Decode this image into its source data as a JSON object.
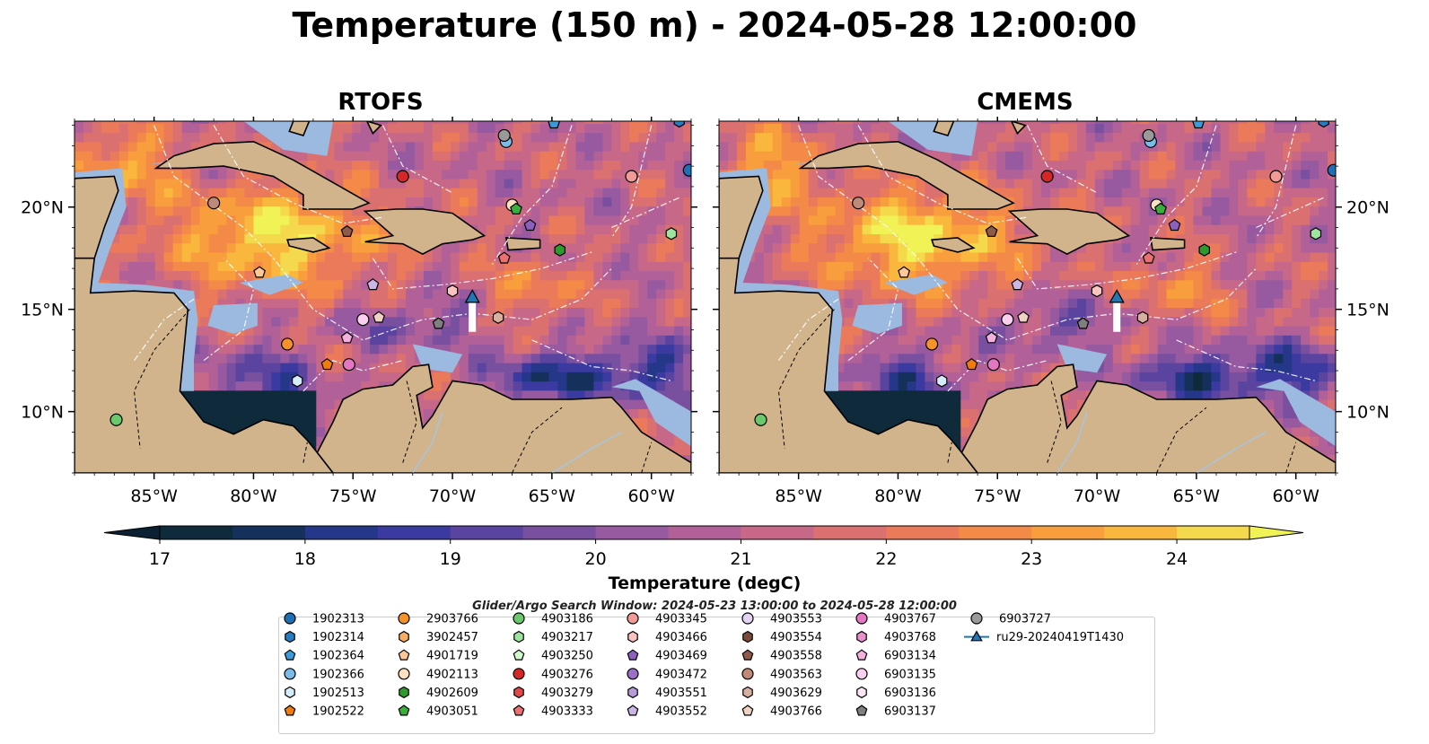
{
  "title": "Temperature (150 m) - 2024-05-28 12:00:00",
  "panels": [
    {
      "title": "RTOFS",
      "source_label": "RTOFS"
    },
    {
      "title": "CMEMS",
      "source_label": "CMEMS"
    }
  ],
  "search_window": "Glider/Argo Search Window: 2024-05-23 13:00:00 to 2024-05-28 12:00:00",
  "colors": {
    "land": "#d2b48c",
    "shelf": "#9cb9e0",
    "water_warm": "#f2e84e",
    "water_cold": "#0b2236",
    "glider": "#1f77b4"
  },
  "chart_data": {
    "type": "heatmap",
    "variable": "Temperature",
    "depth": "150 m",
    "time": "2024-05-28 12:00:00",
    "colorbar": {
      "label": "Temperature (degC)",
      "ticks": [
        17,
        18,
        19,
        20,
        21,
        22,
        23,
        24
      ],
      "range": [
        17,
        24.5
      ],
      "extend": "both",
      "levels": [
        {
          "value": 17.0,
          "color": "#0e2a3b"
        },
        {
          "value": 17.5,
          "color": "#15305a"
        },
        {
          "value": 18.0,
          "color": "#253788"
        },
        {
          "value": 18.5,
          "color": "#3a3aa0"
        },
        {
          "value": 19.0,
          "color": "#5a44a0"
        },
        {
          "value": 19.5,
          "color": "#7950a0"
        },
        {
          "value": 20.0,
          "color": "#975aa0"
        },
        {
          "value": 20.5,
          "color": "#b16198"
        },
        {
          "value": 21.0,
          "color": "#c86888"
        },
        {
          "value": 21.5,
          "color": "#db7070"
        },
        {
          "value": 22.0,
          "color": "#eb7a5a"
        },
        {
          "value": 22.5,
          "color": "#f48a48"
        },
        {
          "value": 23.0,
          "color": "#f89e3c"
        },
        {
          "value": 23.5,
          "color": "#f9b83d"
        },
        {
          "value": 24.0,
          "color": "#f4d94c"
        }
      ]
    },
    "x_axis": {
      "ticks": [
        "85°W",
        "80°W",
        "75°W",
        "70°W",
        "65°W",
        "60°W"
      ],
      "range": [
        -89,
        -58
      ]
    },
    "y_axis": {
      "ticks": [
        "20°N",
        "15°N",
        "10°N"
      ],
      "range": [
        7,
        24.2
      ]
    },
    "legend": {
      "placement": "bottom",
      "entries": [
        {
          "label": "1902313",
          "color": "#1f6fb4",
          "marker": "circle"
        },
        {
          "label": "1902314",
          "color": "#2a7cc0",
          "marker": "hexagon"
        },
        {
          "label": "1902364",
          "color": "#3c9ad8",
          "marker": "pentagon"
        },
        {
          "label": "1902366",
          "color": "#7bbbe8",
          "marker": "circle"
        },
        {
          "label": "1902513",
          "color": "#d6ecfa",
          "marker": "hexagon"
        },
        {
          "label": "1902522",
          "color": "#f07c10",
          "marker": "pentagon"
        },
        {
          "label": "2903766",
          "color": "#f5922a",
          "marker": "circle"
        },
        {
          "label": "3902457",
          "color": "#f8ad60",
          "marker": "hexagon"
        },
        {
          "label": "4901719",
          "color": "#fcc994",
          "marker": "pentagon"
        },
        {
          "label": "4902113",
          "color": "#fde0c0",
          "marker": "circle"
        },
        {
          "label": "4902609",
          "color": "#2e9a2e",
          "marker": "hexagon"
        },
        {
          "label": "4903051",
          "color": "#3aae3a",
          "marker": "pentagon"
        },
        {
          "label": "4903186",
          "color": "#6cc86c",
          "marker": "circle"
        },
        {
          "label": "4903217",
          "color": "#9ee49e",
          "marker": "hexagon"
        },
        {
          "label": "4903250",
          "color": "#d0f8c8",
          "marker": "pentagon"
        },
        {
          "label": "4903276",
          "color": "#d62728",
          "marker": "circle"
        },
        {
          "label": "4903279",
          "color": "#e04848",
          "marker": "hexagon"
        },
        {
          "label": "4903333",
          "color": "#ec7070",
          "marker": "pentagon"
        },
        {
          "label": "4903345",
          "color": "#f29a96",
          "marker": "circle"
        },
        {
          "label": "4903466",
          "color": "#fbc4c0",
          "marker": "hexagon"
        },
        {
          "label": "4903469",
          "color": "#8f5fc0",
          "marker": "pentagon"
        },
        {
          "label": "4903472",
          "color": "#9a6fc6",
          "marker": "circle"
        },
        {
          "label": "4903551",
          "color": "#b79ad8",
          "marker": "hexagon"
        },
        {
          "label": "4903552",
          "color": "#cdb6e6",
          "marker": "pentagon"
        },
        {
          "label": "4903553",
          "color": "#e2d4f2",
          "marker": "circle"
        },
        {
          "label": "4903554",
          "color": "#7a4a3c",
          "marker": "hexagon"
        },
        {
          "label": "4903558",
          "color": "#8f5a48",
          "marker": "pentagon"
        },
        {
          "label": "4903563",
          "color": "#c08a78",
          "marker": "circle"
        },
        {
          "label": "4903629",
          "color": "#d8b0a0",
          "marker": "hexagon"
        },
        {
          "label": "4903766",
          "color": "#f0d2c4",
          "marker": "pentagon"
        },
        {
          "label": "4903767",
          "color": "#e377c2",
          "marker": "circle"
        },
        {
          "label": "4903768",
          "color": "#ea92ce",
          "marker": "hexagon"
        },
        {
          "label": "6903134",
          "color": "#f4b0de",
          "marker": "pentagon"
        },
        {
          "label": "6903135",
          "color": "#fbcfee",
          "marker": "circle"
        },
        {
          "label": "6903136",
          "color": "#fde4f6",
          "marker": "hexagon"
        },
        {
          "label": "6903137",
          "color": "#7f7f7f",
          "marker": "pentagon"
        },
        {
          "label": "6903727",
          "color": "#9a9a9a",
          "marker": "circle"
        },
        {
          "label": "ru29-20240419T1430",
          "color": "#1f77b4",
          "marker": "triangle-line"
        }
      ]
    },
    "floats": [
      {
        "id": "1902313",
        "lon": -58.1,
        "lat": 21.8
      },
      {
        "id": "1902314",
        "lon": -58.6,
        "lat": 24.2
      },
      {
        "id": "1902364",
        "lon": -64.9,
        "lat": 24.1
      },
      {
        "id": "1902366",
        "lon": -67.3,
        "lat": 23.2
      },
      {
        "id": "1902513",
        "lon": -77.8,
        "lat": 11.5
      },
      {
        "id": "1902522",
        "lon": -76.3,
        "lat": 12.3
      },
      {
        "id": "2903766",
        "lon": -78.3,
        "lat": 13.3
      },
      {
        "id": "4902113",
        "lon": -67.0,
        "lat": 20.1
      },
      {
        "id": "4901719",
        "lon": -79.7,
        "lat": 16.8
      },
      {
        "id": "4903051",
        "lon": -66.8,
        "lat": 19.9
      },
      {
        "id": "4903186",
        "lon": -86.9,
        "lat": 9.6
      },
      {
        "id": "4903217",
        "lon": -59.0,
        "lat": 18.7
      },
      {
        "id": "4903276",
        "lon": -72.5,
        "lat": 21.5
      },
      {
        "id": "4903345",
        "lon": -61.0,
        "lat": 21.5
      },
      {
        "id": "4903466",
        "lon": -70.0,
        "lat": 15.9
      },
      {
        "id": "4903552",
        "lon": -74.0,
        "lat": 16.2
      },
      {
        "id": "4903558",
        "lon": -75.3,
        "lat": 18.8
      },
      {
        "id": "4903563",
        "lon": -82.0,
        "lat": 20.2
      },
      {
        "id": "4903767",
        "lon": -75.2,
        "lat": 12.3
      },
      {
        "id": "6903134",
        "lon": -75.3,
        "lat": 13.6
      },
      {
        "id": "6903135",
        "lon": -74.5,
        "lat": 14.5
      },
      {
        "id": "6903137",
        "lon": -70.7,
        "lat": 14.3
      },
      {
        "id": "6903727",
        "lon": -67.4,
        "lat": 23.5
      },
      {
        "id": "4903629",
        "lon": -67.7,
        "lat": 14.6
      },
      {
        "id": "4903766",
        "lon": -73.7,
        "lat": 14.6
      },
      {
        "id": "4903469",
        "lon": -66.1,
        "lat": 19.1
      },
      {
        "id": "4902609",
        "lon": -64.6,
        "lat": 17.9
      },
      {
        "id": "4903333",
        "lon": -67.4,
        "lat": 17.5
      }
    ],
    "glider": {
      "id": "ru29-20240419T1430",
      "track": [
        [
          -69.0,
          15.5
        ],
        [
          -69.0,
          13.9
        ]
      ]
    }
  }
}
